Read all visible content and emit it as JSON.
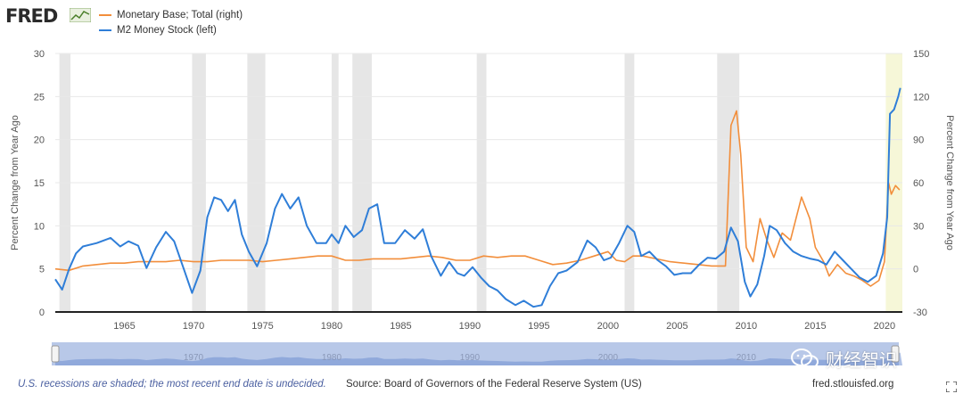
{
  "logo": {
    "text": "FRED",
    "icon": "fred-chart-icon"
  },
  "legend": [
    {
      "label": "Monetary Base; Total (right)",
      "color": "#f28e3b"
    },
    {
      "label": "M2 Money Stock (left)",
      "color": "#2f7ed8"
    }
  ],
  "footer": {
    "note": "U.S. recessions are shaded; the most recent end date is undecided.",
    "source": "Source: Board of Governors of the Federal Reserve System (US)",
    "url": "fred.stlouisfed.org"
  },
  "watermark": {
    "text": "财经智识",
    "icon": "wechat-icon"
  },
  "colors": {
    "recession": "#e6e6e6",
    "current_recession": "#f6f7d8",
    "navigator": "#b8c8e8",
    "navigator_fill": "#6f8fcf",
    "grid": "#e8e8e8"
  },
  "chart_data": {
    "type": "line",
    "title": "",
    "ylabel_left": "Percent Change from Year Ago",
    "ylabel_right": "Percent Change from Year Ago",
    "xlim": [
      1960.0,
      2021.3
    ],
    "ylim_left": [
      0,
      30
    ],
    "ylim_right": [
      -30,
      150
    ],
    "yticks_left": [
      0,
      5,
      10,
      15,
      20,
      25,
      30
    ],
    "yticks_right": [
      -30,
      0,
      30,
      60,
      90,
      120,
      150
    ],
    "xticks": [
      1965,
      1970,
      1975,
      1980,
      1985,
      1990,
      1995,
      2000,
      2005,
      2010,
      2015,
      2020
    ],
    "navigator_ticks": [
      1970,
      1980,
      1990,
      2000,
      2010
    ],
    "recessions": [
      [
        1960.3,
        1961.1
      ],
      [
        1969.9,
        1970.9
      ],
      [
        1973.9,
        1975.2
      ],
      [
        1980.0,
        1980.5
      ],
      [
        1981.5,
        1982.9
      ],
      [
        1990.5,
        1991.2
      ],
      [
        2001.2,
        2001.9
      ],
      [
        2007.9,
        2009.5
      ],
      [
        2020.1,
        2021.3
      ]
    ],
    "series": [
      {
        "name": "Monetary Base; Total (right)",
        "axis": "right",
        "color": "#f28e3b",
        "points": [
          [
            1960.0,
            0
          ],
          [
            1961.0,
            -1
          ],
          [
            1962.0,
            2
          ],
          [
            1963.0,
            3
          ],
          [
            1964.0,
            4
          ],
          [
            1965.0,
            4
          ],
          [
            1966.0,
            5
          ],
          [
            1967.0,
            5
          ],
          [
            1968.0,
            5
          ],
          [
            1969.0,
            6
          ],
          [
            1970.0,
            5
          ],
          [
            1971.0,
            5
          ],
          [
            1972.0,
            6
          ],
          [
            1973.0,
            6
          ],
          [
            1974.0,
            6
          ],
          [
            1975.0,
            5
          ],
          [
            1976.0,
            6
          ],
          [
            1977.0,
            7
          ],
          [
            1978.0,
            8
          ],
          [
            1979.0,
            9
          ],
          [
            1980.0,
            9
          ],
          [
            1981.0,
            6
          ],
          [
            1982.0,
            6
          ],
          [
            1983.0,
            7
          ],
          [
            1984.0,
            7
          ],
          [
            1985.0,
            7
          ],
          [
            1986.0,
            8
          ],
          [
            1987.0,
            9
          ],
          [
            1988.0,
            8
          ],
          [
            1989.0,
            6
          ],
          [
            1990.0,
            6
          ],
          [
            1991.0,
            9
          ],
          [
            1992.0,
            8
          ],
          [
            1993.0,
            9
          ],
          [
            1994.0,
            9
          ],
          [
            1995.0,
            6
          ],
          [
            1996.0,
            3
          ],
          [
            1997.0,
            4
          ],
          [
            1998.0,
            6
          ],
          [
            1999.0,
            9
          ],
          [
            2000.0,
            12
          ],
          [
            2000.6,
            6
          ],
          [
            2001.2,
            5
          ],
          [
            2001.8,
            9
          ],
          [
            2002.5,
            9
          ],
          [
            2003.5,
            7
          ],
          [
            2004.5,
            5
          ],
          [
            2005.5,
            4
          ],
          [
            2006.5,
            3
          ],
          [
            2007.5,
            2
          ],
          [
            2008.5,
            2
          ],
          [
            2008.9,
            100
          ],
          [
            2009.3,
            110
          ],
          [
            2009.6,
            80
          ],
          [
            2010.0,
            15
          ],
          [
            2010.5,
            5
          ],
          [
            2011.0,
            35
          ],
          [
            2011.5,
            20
          ],
          [
            2012.0,
            8
          ],
          [
            2012.6,
            25
          ],
          [
            2013.2,
            20
          ],
          [
            2014.0,
            50
          ],
          [
            2014.6,
            35
          ],
          [
            2015.0,
            15
          ],
          [
            2015.6,
            5
          ],
          [
            2016.0,
            -5
          ],
          [
            2016.6,
            3
          ],
          [
            2017.2,
            -3
          ],
          [
            2017.8,
            -5
          ],
          [
            2018.4,
            -8
          ],
          [
            2019.0,
            -12
          ],
          [
            2019.6,
            -8
          ],
          [
            2020.0,
            5
          ],
          [
            2020.3,
            60
          ],
          [
            2020.5,
            52
          ],
          [
            2020.8,
            58
          ],
          [
            2021.1,
            55
          ]
        ]
      },
      {
        "name": "M2 Money Stock (left)",
        "axis": "left",
        "color": "#2f7ed8",
        "points": [
          [
            1960.0,
            3.8
          ],
          [
            1960.5,
            2.6
          ],
          [
            1961.0,
            5.0
          ],
          [
            1961.5,
            6.8
          ],
          [
            1962.0,
            7.6
          ],
          [
            1963.0,
            8.0
          ],
          [
            1964.0,
            8.6
          ],
          [
            1964.7,
            7.6
          ],
          [
            1965.3,
            8.2
          ],
          [
            1966.0,
            7.7
          ],
          [
            1966.6,
            5.1
          ],
          [
            1967.3,
            7.5
          ],
          [
            1968.0,
            9.3
          ],
          [
            1968.6,
            8.2
          ],
          [
            1969.3,
            5.0
          ],
          [
            1969.9,
            2.2
          ],
          [
            1970.5,
            4.8
          ],
          [
            1971.0,
            11.0
          ],
          [
            1971.5,
            13.3
          ],
          [
            1972.0,
            13.0
          ],
          [
            1972.5,
            11.7
          ],
          [
            1973.0,
            13.0
          ],
          [
            1973.5,
            9.0
          ],
          [
            1974.0,
            7.0
          ],
          [
            1974.6,
            5.3
          ],
          [
            1975.3,
            8.0
          ],
          [
            1975.9,
            12.0
          ],
          [
            1976.4,
            13.7
          ],
          [
            1977.0,
            12.0
          ],
          [
            1977.6,
            13.3
          ],
          [
            1978.2,
            10.0
          ],
          [
            1978.9,
            8.0
          ],
          [
            1979.6,
            8.0
          ],
          [
            1980.0,
            9.0
          ],
          [
            1980.5,
            8.0
          ],
          [
            1981.0,
            10.0
          ],
          [
            1981.6,
            8.7
          ],
          [
            1982.2,
            9.5
          ],
          [
            1982.7,
            12.0
          ],
          [
            1983.3,
            12.5
          ],
          [
            1983.8,
            8.0
          ],
          [
            1984.6,
            8.0
          ],
          [
            1985.3,
            9.5
          ],
          [
            1986.0,
            8.5
          ],
          [
            1986.6,
            9.6
          ],
          [
            1987.2,
            6.5
          ],
          [
            1987.9,
            4.2
          ],
          [
            1988.5,
            5.8
          ],
          [
            1989.1,
            4.5
          ],
          [
            1989.6,
            4.2
          ],
          [
            1990.2,
            5.2
          ],
          [
            1990.8,
            4.0
          ],
          [
            1991.4,
            3.0
          ],
          [
            1992.0,
            2.5
          ],
          [
            1992.6,
            1.5
          ],
          [
            1993.3,
            0.8
          ],
          [
            1993.9,
            1.3
          ],
          [
            1994.6,
            0.6
          ],
          [
            1995.2,
            0.8
          ],
          [
            1995.8,
            3.0
          ],
          [
            1996.4,
            4.5
          ],
          [
            1997.0,
            4.8
          ],
          [
            1997.8,
            5.8
          ],
          [
            1998.5,
            8.3
          ],
          [
            1999.1,
            7.5
          ],
          [
            1999.7,
            6.0
          ],
          [
            2000.2,
            6.3
          ],
          [
            2000.8,
            8.0
          ],
          [
            2001.4,
            10.0
          ],
          [
            2001.9,
            9.3
          ],
          [
            2002.4,
            6.5
          ],
          [
            2003.0,
            7.0
          ],
          [
            2003.6,
            6.0
          ],
          [
            2004.2,
            5.3
          ],
          [
            2004.8,
            4.3
          ],
          [
            2005.4,
            4.5
          ],
          [
            2006.0,
            4.5
          ],
          [
            2006.6,
            5.5
          ],
          [
            2007.2,
            6.3
          ],
          [
            2007.8,
            6.2
          ],
          [
            2008.4,
            7.0
          ],
          [
            2008.9,
            9.8
          ],
          [
            2009.4,
            8.2
          ],
          [
            2009.9,
            3.5
          ],
          [
            2010.3,
            1.8
          ],
          [
            2010.8,
            3.2
          ],
          [
            2011.3,
            6.5
          ],
          [
            2011.7,
            10.0
          ],
          [
            2012.2,
            9.5
          ],
          [
            2012.8,
            8.0
          ],
          [
            2013.4,
            7.0
          ],
          [
            2014.0,
            6.5
          ],
          [
            2014.6,
            6.2
          ],
          [
            2015.2,
            6.0
          ],
          [
            2015.8,
            5.5
          ],
          [
            2016.4,
            7.0
          ],
          [
            2017.0,
            6.0
          ],
          [
            2017.6,
            5.0
          ],
          [
            2018.2,
            4.0
          ],
          [
            2018.8,
            3.5
          ],
          [
            2019.4,
            4.2
          ],
          [
            2019.9,
            6.8
          ],
          [
            2020.2,
            11.0
          ],
          [
            2020.4,
            23.0
          ],
          [
            2020.7,
            23.5
          ],
          [
            2021.0,
            25.0
          ],
          [
            2021.15,
            26.0
          ]
        ]
      }
    ]
  }
}
